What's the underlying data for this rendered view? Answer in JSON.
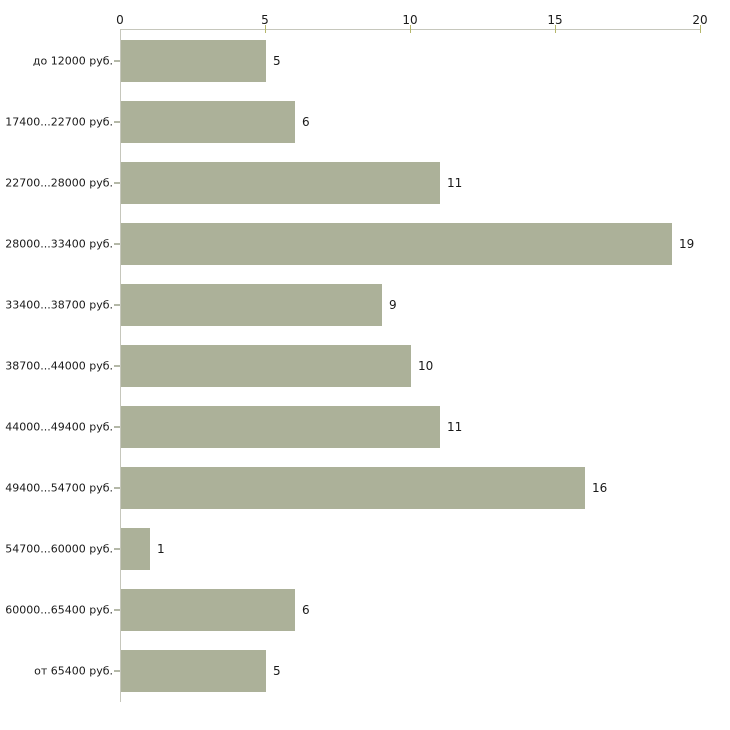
{
  "chart_data": {
    "type": "bar",
    "orientation": "horizontal",
    "title": "",
    "xlabel": "",
    "ylabel": "",
    "categories": [
      "до 12000 руб.",
      "17400...22700 руб.",
      "22700...28000 руб.",
      "28000...33400 руб.",
      "33400...38700 руб.",
      "38700...44000 руб.",
      "44000...49400 руб.",
      "49400...54700 руб.",
      "54700...60000 руб.",
      "60000...65400 руб.",
      "от 65400 руб."
    ],
    "values": [
      5,
      6,
      11,
      19,
      9,
      10,
      11,
      16,
      1,
      6,
      5
    ],
    "x_ticks": [
      0,
      5,
      10,
      15,
      20
    ],
    "xlim": [
      0,
      20
    ],
    "grid": false,
    "legend": "none",
    "data_labels_shown": true,
    "colors": {
      "bar_fill": "#acb199",
      "axis_line": "#c6c7bc",
      "x_tick_mark": "#b5b76b",
      "category_tick_mark": "#b4b8a8",
      "text": "#1a1a1a",
      "background": "#ffffff"
    }
  }
}
